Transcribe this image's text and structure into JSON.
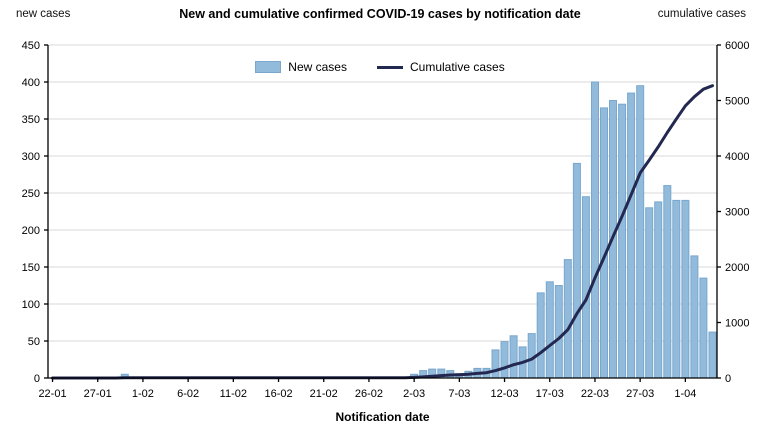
{
  "header": {
    "title": "New and cumulative confirmed COVID-19 cases by notification date",
    "left_axis_corner_label": "new cases",
    "right_axis_corner_label": "cumulative cases"
  },
  "legend": {
    "position": "top-center",
    "items": [
      {
        "label": "New cases",
        "swatch": "bar"
      },
      {
        "label": "Cumulative cases",
        "swatch": "line"
      }
    ]
  },
  "chart_data": {
    "type": "bar+line",
    "title": "New and cumulative confirmed COVID-19 cases by notification date",
    "xlabel": "Notification date",
    "grid": "horizontal",
    "legend_position": "top-center",
    "x_tick_labels": [
      "22-01",
      "27-01",
      "1-02",
      "6-02",
      "11-02",
      "16-02",
      "21-02",
      "26-02",
      "2-03",
      "7-03",
      "12-03",
      "17-03",
      "22-03",
      "27-03",
      "1-04"
    ],
    "left_axis": {
      "label": "new cases",
      "range": [
        0,
        450
      ],
      "step": 50
    },
    "right_axis": {
      "label": "cumulative cases",
      "range": [
        0,
        6000
      ],
      "step": 1000
    },
    "dates": [
      "22-01",
      "23-01",
      "24-01",
      "25-01",
      "26-01",
      "27-01",
      "28-01",
      "29-01",
      "30-01",
      "31-01",
      "1-02",
      "2-02",
      "3-02",
      "4-02",
      "5-02",
      "6-02",
      "7-02",
      "8-02",
      "9-02",
      "10-02",
      "11-02",
      "12-02",
      "13-02",
      "14-02",
      "15-02",
      "16-02",
      "17-02",
      "18-02",
      "19-02",
      "20-02",
      "21-02",
      "22-02",
      "23-02",
      "24-02",
      "25-02",
      "26-02",
      "27-02",
      "28-02",
      "29-02",
      "1-03",
      "2-03",
      "3-03",
      "4-03",
      "5-03",
      "6-03",
      "7-03",
      "8-03",
      "9-03",
      "10-03",
      "11-03",
      "12-03",
      "13-03",
      "14-03",
      "15-03",
      "16-03",
      "17-03",
      "18-03",
      "19-03",
      "20-03",
      "21-03",
      "22-03",
      "23-03",
      "24-03",
      "25-03",
      "26-03",
      "27-03",
      "28-03",
      "29-03",
      "30-03",
      "31-03",
      "1-04",
      "2-04",
      "3-04",
      "4-04"
    ],
    "series": [
      {
        "name": "New cases",
        "type": "bar",
        "axis": "left",
        "color": "#92BBDB",
        "values": [
          0,
          0,
          0,
          0,
          0,
          0,
          0,
          0,
          5,
          0,
          0,
          0,
          0,
          0,
          0,
          0,
          0,
          0,
          0,
          0,
          0,
          0,
          0,
          0,
          0,
          0,
          0,
          0,
          0,
          0,
          0,
          0,
          0,
          0,
          0,
          0,
          0,
          0,
          0,
          0,
          5,
          10,
          12,
          12,
          10,
          6,
          9,
          13,
          13,
          38,
          49,
          57,
          42,
          60,
          115,
          130,
          125,
          160,
          290,
          245,
          400,
          365,
          375,
          370,
          385,
          395,
          230,
          238,
          260,
          240,
          240,
          165,
          135,
          62
        ]
      },
      {
        "name": "Cumulative cases",
        "type": "line",
        "axis": "right",
        "color": "#232850",
        "values": [
          0,
          0,
          0,
          0,
          0,
          0,
          0,
          0,
          5,
          5,
          5,
          5,
          5,
          5,
          5,
          5,
          5,
          5,
          5,
          5,
          5,
          5,
          5,
          5,
          5,
          5,
          5,
          5,
          5,
          5,
          5,
          5,
          5,
          5,
          5,
          5,
          5,
          5,
          5,
          5,
          10,
          20,
          32,
          44,
          54,
          60,
          69,
          82,
          95,
          133,
          182,
          239,
          281,
          341,
          456,
          586,
          711,
          871,
          1161,
          1406,
          1806,
          2171,
          2546,
          2916,
          3301,
          3696,
          3926,
          4164,
          4424,
          4664,
          4904,
          5069,
          5204,
          5266
        ]
      }
    ]
  },
  "colors": {
    "bar_fill": "#92BBDB",
    "bar_border": "#79A7CE",
    "line": "#232850",
    "gridline": "#D9D9D9",
    "axis": "#000000",
    "background": "#FFFFFF"
  }
}
